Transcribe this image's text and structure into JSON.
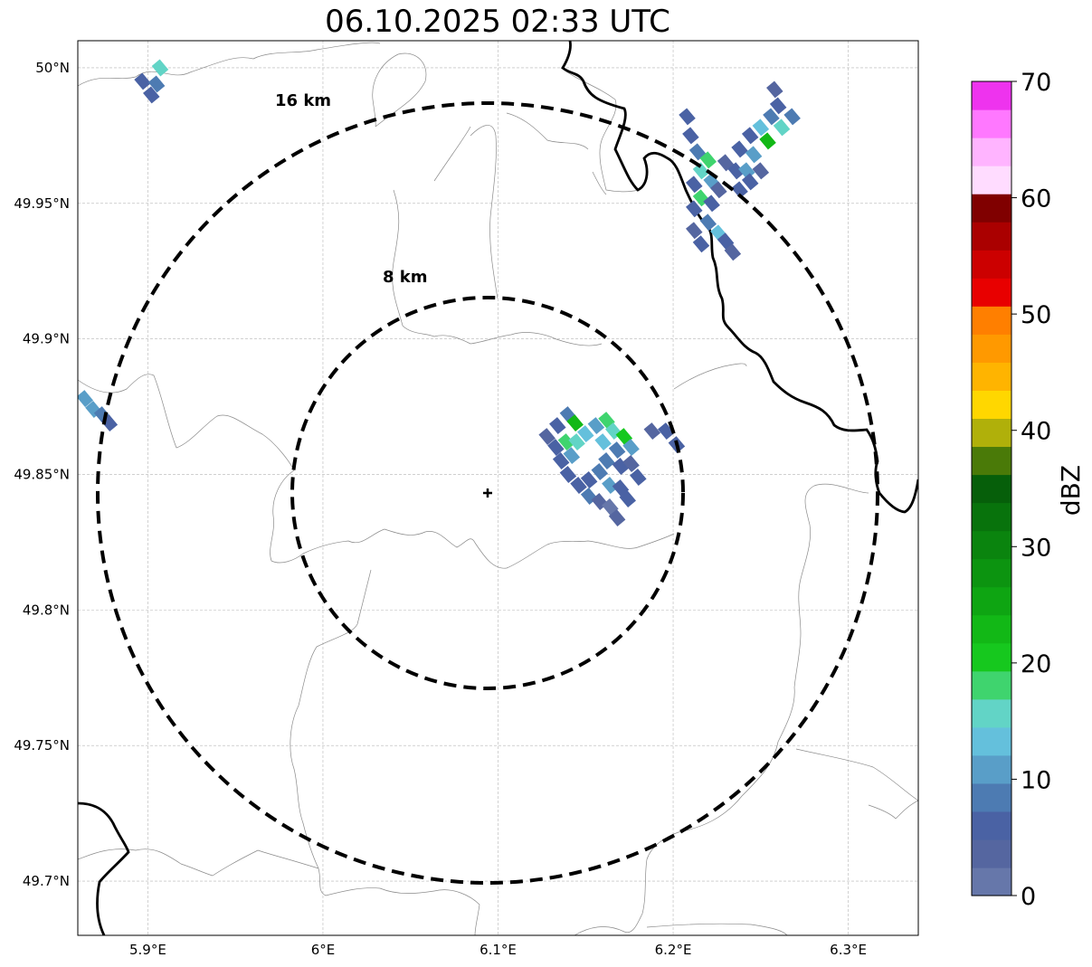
{
  "title": "06.10.2025 02:33 UTC",
  "map": {
    "lon_range": [
      5.86,
      6.34
    ],
    "lat_range": [
      49.68,
      50.01
    ],
    "lat_ticks": [
      {
        "value": 50.0,
        "label": "50°N"
      },
      {
        "value": 49.95,
        "label": "49.95°N"
      },
      {
        "value": 49.9,
        "label": "49.9°N"
      },
      {
        "value": 49.85,
        "label": "49.85°N"
      },
      {
        "value": 49.8,
        "label": "49.8°N"
      },
      {
        "value": 49.75,
        "label": "49.75°N"
      },
      {
        "value": 49.7,
        "label": "49.7°N"
      }
    ],
    "lon_ticks": [
      {
        "value": 5.9,
        "label": "5.9°E"
      },
      {
        "value": 6.0,
        "label": "6°E"
      },
      {
        "value": 6.1,
        "label": "6.1°E"
      },
      {
        "value": 6.2,
        "label": "6.2°E"
      },
      {
        "value": 6.3,
        "label": "6.3°E"
      }
    ],
    "gridlines": true,
    "radar_center": {
      "lon": 6.096,
      "lat": 49.843
    },
    "range_rings": [
      {
        "radius_km": 8,
        "label": "8 km"
      },
      {
        "radius_km": 16,
        "label": "16 km"
      }
    ]
  },
  "colorbar": {
    "label": "dBZ",
    "min": 0,
    "max": 70,
    "ticks": [
      0,
      10,
      20,
      30,
      40,
      50,
      60,
      70
    ],
    "colors": [
      "#6677aa",
      "#5566a0",
      "#4a62a4",
      "#4d7bb2",
      "#599ec8",
      "#64c0dc",
      "#62d4c6",
      "#3fd46e",
      "#16c81e",
      "#12b816",
      "#0ea512",
      "#0c9410",
      "#0a840e",
      "#08730c",
      "#065f0a",
      "#4a7a08",
      "#b0b00a",
      "#ffd700",
      "#ffb400",
      "#ff9900",
      "#ff7f00",
      "#e80000",
      "#cc0000",
      "#aa0000",
      "#800000",
      "#ffdcff",
      "#ffb4ff",
      "#ff78ff",
      "#ee33ee"
    ]
  },
  "echoes": [
    {
      "lon": 5.897,
      "lat": 49.995,
      "dbz": 6
    },
    {
      "lon": 5.902,
      "lat": 49.99,
      "dbz": 5
    },
    {
      "lon": 5.907,
      "lat": 50.0,
      "dbz": 16
    },
    {
      "lon": 5.905,
      "lat": 49.994,
      "dbz": 9
    },
    {
      "lon": 5.864,
      "lat": 49.878,
      "dbz": 12
    },
    {
      "lon": 5.869,
      "lat": 49.874,
      "dbz": 10
    },
    {
      "lon": 5.874,
      "lat": 49.872,
      "dbz": 8
    },
    {
      "lon": 5.878,
      "lat": 49.869,
      "dbz": 5
    },
    {
      "lon": 6.128,
      "lat": 49.864,
      "dbz": 4
    },
    {
      "lon": 6.134,
      "lat": 49.868,
      "dbz": 6
    },
    {
      "lon": 6.14,
      "lat": 49.872,
      "dbz": 9
    },
    {
      "lon": 6.144,
      "lat": 49.869,
      "dbz": 22
    },
    {
      "lon": 6.15,
      "lat": 49.865,
      "dbz": 14
    },
    {
      "lon": 6.156,
      "lat": 49.868,
      "dbz": 12
    },
    {
      "lon": 6.162,
      "lat": 49.87,
      "dbz": 18
    },
    {
      "lon": 6.166,
      "lat": 49.866,
      "dbz": 16
    },
    {
      "lon": 6.172,
      "lat": 49.864,
      "dbz": 20
    },
    {
      "lon": 6.176,
      "lat": 49.86,
      "dbz": 11
    },
    {
      "lon": 6.133,
      "lat": 49.86,
      "dbz": 7
    },
    {
      "lon": 6.139,
      "lat": 49.862,
      "dbz": 18
    },
    {
      "lon": 6.145,
      "lat": 49.862,
      "dbz": 16
    },
    {
      "lon": 6.16,
      "lat": 49.862,
      "dbz": 13
    },
    {
      "lon": 6.168,
      "lat": 49.859,
      "dbz": 9
    },
    {
      "lon": 6.136,
      "lat": 49.855,
      "dbz": 5
    },
    {
      "lon": 6.142,
      "lat": 49.857,
      "dbz": 12
    },
    {
      "lon": 6.162,
      "lat": 49.855,
      "dbz": 8
    },
    {
      "lon": 6.17,
      "lat": 49.853,
      "dbz": 6
    },
    {
      "lon": 6.176,
      "lat": 49.854,
      "dbz": 4
    },
    {
      "lon": 6.18,
      "lat": 49.849,
      "dbz": 7
    },
    {
      "lon": 6.14,
      "lat": 49.85,
      "dbz": 6
    },
    {
      "lon": 6.146,
      "lat": 49.846,
      "dbz": 5
    },
    {
      "lon": 6.152,
      "lat": 49.842,
      "dbz": 8
    },
    {
      "lon": 6.158,
      "lat": 49.84,
      "dbz": 4
    },
    {
      "lon": 6.164,
      "lat": 49.846,
      "dbz": 10
    },
    {
      "lon": 6.17,
      "lat": 49.845,
      "dbz": 6
    },
    {
      "lon": 6.174,
      "lat": 49.841,
      "dbz": 5
    },
    {
      "lon": 6.164,
      "lat": 49.838,
      "dbz": 2
    },
    {
      "lon": 6.168,
      "lat": 49.834,
      "dbz": 3
    },
    {
      "lon": 6.152,
      "lat": 49.848,
      "dbz": 7
    },
    {
      "lon": 6.158,
      "lat": 49.851,
      "dbz": 9
    },
    {
      "lon": 6.188,
      "lat": 49.866,
      "dbz": 4
    },
    {
      "lon": 6.196,
      "lat": 49.866,
      "dbz": 6
    },
    {
      "lon": 6.202,
      "lat": 49.861,
      "dbz": 5
    },
    {
      "lon": 6.208,
      "lat": 49.982,
      "dbz": 6
    },
    {
      "lon": 6.21,
      "lat": 49.975,
      "dbz": 5
    },
    {
      "lon": 6.214,
      "lat": 49.969,
      "dbz": 8
    },
    {
      "lon": 6.22,
      "lat": 49.966,
      "dbz": 17
    },
    {
      "lon": 6.216,
      "lat": 49.962,
      "dbz": 16
    },
    {
      "lon": 6.222,
      "lat": 49.958,
      "dbz": 12
    },
    {
      "lon": 6.212,
      "lat": 49.957,
      "dbz": 7
    },
    {
      "lon": 6.216,
      "lat": 49.952,
      "dbz": 19
    },
    {
      "lon": 6.222,
      "lat": 49.95,
      "dbz": 6
    },
    {
      "lon": 6.226,
      "lat": 49.955,
      "dbz": 4
    },
    {
      "lon": 6.212,
      "lat": 49.948,
      "dbz": 5
    },
    {
      "lon": 6.22,
      "lat": 49.943,
      "dbz": 9
    },
    {
      "lon": 6.226,
      "lat": 49.939,
      "dbz": 14
    },
    {
      "lon": 6.23,
      "lat": 49.936,
      "dbz": 5
    },
    {
      "lon": 6.212,
      "lat": 49.94,
      "dbz": 4
    },
    {
      "lon": 6.216,
      "lat": 49.935,
      "dbz": 5
    },
    {
      "lon": 6.234,
      "lat": 49.932,
      "dbz": 3
    },
    {
      "lon": 6.23,
      "lat": 49.965,
      "dbz": 4
    },
    {
      "lon": 6.236,
      "lat": 49.962,
      "dbz": 7
    },
    {
      "lon": 6.242,
      "lat": 49.962,
      "dbz": 10
    },
    {
      "lon": 6.238,
      "lat": 49.97,
      "dbz": 6
    },
    {
      "lon": 6.244,
      "lat": 49.975,
      "dbz": 5
    },
    {
      "lon": 6.25,
      "lat": 49.978,
      "dbz": 13
    },
    {
      "lon": 6.254,
      "lat": 49.973,
      "dbz": 22
    },
    {
      "lon": 6.256,
      "lat": 49.982,
      "dbz": 8
    },
    {
      "lon": 6.26,
      "lat": 49.986,
      "dbz": 6
    },
    {
      "lon": 6.262,
      "lat": 49.978,
      "dbz": 15
    },
    {
      "lon": 6.268,
      "lat": 49.982,
      "dbz": 9
    },
    {
      "lon": 6.258,
      "lat": 49.992,
      "dbz": 4
    },
    {
      "lon": 6.246,
      "lat": 49.968,
      "dbz": 12
    },
    {
      "lon": 6.244,
      "lat": 49.958,
      "dbz": 5
    },
    {
      "lon": 6.238,
      "lat": 49.955,
      "dbz": 6
    },
    {
      "lon": 6.25,
      "lat": 49.962,
      "dbz": 4
    }
  ],
  "labels": {
    "ring_8": "8 km",
    "ring_16": "16 km",
    "colorbar_label": "dBZ"
  }
}
